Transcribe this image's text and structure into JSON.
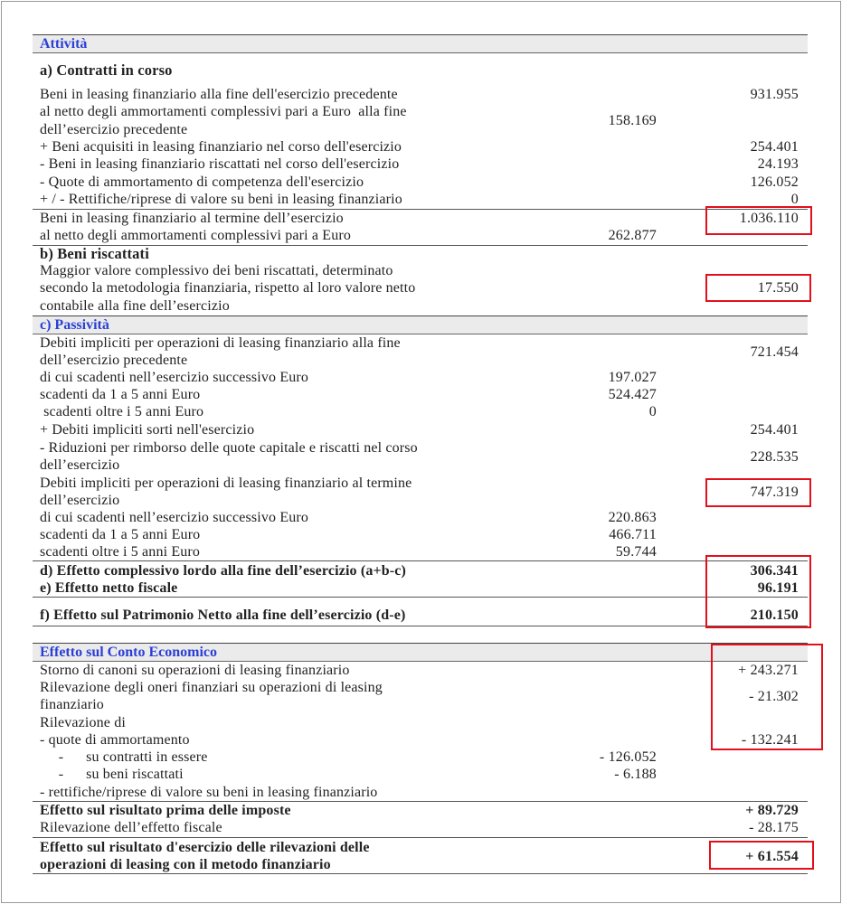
{
  "rows": [
    {
      "type": "band",
      "lines": [
        "Attività"
      ]
    },
    {
      "type": "sub",
      "lines": [
        "a) Contratti in corso"
      ]
    },
    {
      "lines": [
        "Beni in leasing finanziario alla fine dell'esercizio precedente",
        "al netto degli ammortamenti complessivi pari a Euro  alla fine",
        "dell’esercizio precedente"
      ],
      "mid": "158.169",
      "right": "931.955"
    },
    {
      "lines": [
        "+ Beni acquisiti in leasing finanziario nel corso dell'esercizio"
      ],
      "right": "254.401"
    },
    {
      "lines": [
        "- Beni in leasing finanziario riscattati nel corso dell'esercizio"
      ],
      "right": "24.193"
    },
    {
      "lines": [
        "- Quote di ammortamento di competenza dell'esercizio"
      ],
      "right": "126.052"
    },
    {
      "lines": [
        "+ / - Rettifiche/riprese di valore su beni in leasing finanziario"
      ],
      "right": "0"
    },
    {
      "lines": [
        "Beni in leasing finanziario al termine dell’esercizio",
        "al netto degli ammortamenti complessivi pari a Euro"
      ],
      "mid": "262.877",
      "right": "1.036.110",
      "highlighted": true
    },
    {
      "type": "sub",
      "lines": [
        "b) Beni riscattati"
      ]
    },
    {
      "lines": [
        "Maggior valore complessivo dei beni riscattati, determinato",
        "secondo la metodologia finanziaria, rispetto al loro valore netto",
        "contabile alla fine dell’esercizio"
      ],
      "right": "17.550",
      "highlighted": true
    },
    {
      "type": "band",
      "lines": [
        "c) Passività"
      ]
    },
    {
      "lines": [
        "Debiti impliciti per operazioni di leasing finanziario alla fine",
        "dell’esercizio precedente"
      ],
      "right": "721.454"
    },
    {
      "lines": [
        "di cui scadenti nell’esercizio successivo Euro"
      ],
      "mid": "197.027"
    },
    {
      "lines": [
        "scadenti da 1 a 5 anni Euro"
      ],
      "mid": "524.427"
    },
    {
      "lines": [
        " scadenti oltre i 5 anni Euro"
      ],
      "mid": "0"
    },
    {
      "lines": [
        "+ Debiti impliciti sorti nell'esercizio"
      ],
      "right": "254.401"
    },
    {
      "lines": [
        "- Riduzioni per rimborso delle quote capitale e riscatti nel corso",
        "dell’esercizio"
      ],
      "right": "228.535"
    },
    {
      "lines": [
        "Debiti impliciti per operazioni di leasing finanziario al termine",
        "dell’esercizio"
      ],
      "right": "747.319",
      "highlighted": true
    },
    {
      "lines": [
        "di cui scadenti nell’esercizio successivo Euro"
      ],
      "mid": "220.863"
    },
    {
      "lines": [
        "scadenti da 1 a 5 anni Euro"
      ],
      "mid": "466.711"
    },
    {
      "lines": [
        "scadenti oltre i 5 anni Euro"
      ],
      "mid": "59.744"
    },
    {
      "type": "bold",
      "lines": [
        "d) Effetto complessivo lordo alla fine dell’esercizio (a+b-c)"
      ],
      "right": "306.341",
      "highlighted": true
    },
    {
      "type": "bold",
      "lines": [
        "e) Effetto netto fiscale"
      ],
      "right": "96.191",
      "highlighted": true
    },
    {
      "type": "bold",
      "lines": [
        "f) Effetto sul Patrimonio Netto alla fine dell’esercizio (d-e)"
      ],
      "right": "210.150",
      "highlighted": true
    },
    {
      "type": "band",
      "lines": [
        "Effetto sul Conto Economico"
      ]
    },
    {
      "lines": [
        "Storno di canoni su operazioni di leasing finanziario"
      ],
      "right": "+ 243.271",
      "highlighted": true
    },
    {
      "lines": [
        "Rilevazione degli oneri finanziari su operazioni di leasing",
        "finanziario"
      ],
      "right": "- 21.302",
      "highlighted": true
    },
    {
      "lines": [
        "Rilevazione di"
      ]
    },
    {
      "lines": [
        "- quote di ammortamento"
      ],
      "right": "- 132.241",
      "highlighted": true
    },
    {
      "lines": [
        "     -      su contratti in essere"
      ],
      "mid": "- 126.052"
    },
    {
      "lines": [
        "     -      su beni riscattati"
      ],
      "mid": "- 6.188"
    },
    {
      "lines": [
        "- rettifiche/riprese di valore su beni in leasing finanziario"
      ]
    },
    {
      "type": "bold",
      "lines": [
        "Effetto sul risultato prima delle imposte"
      ],
      "right": "+ 89.729"
    },
    {
      "lines": [
        "Rilevazione dell’effetto fiscale"
      ],
      "right": "- 28.175"
    },
    {
      "type": "bold",
      "lines": [
        "Effetto sul risultato d'esercizio delle rilevazioni delle",
        "operazioni di leasing con il metodo finanziario"
      ],
      "right": "+ 61.554",
      "highlighted": true
    }
  ],
  "colors": {
    "section_header": "#2b3fd6",
    "highlight_box": "#e3101c",
    "band_background": "#ebebeb"
  }
}
